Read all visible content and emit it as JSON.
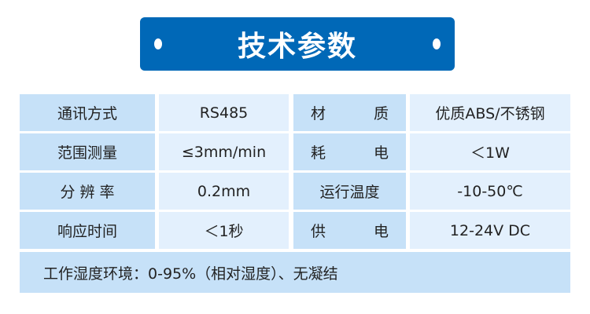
{
  "title": "技术参数",
  "colors": {
    "banner": "#0068b7",
    "label_cell": "#c6e1f8",
    "value_cell": "#e3f0fd"
  },
  "rows": [
    {
      "label1": "通讯方式",
      "value1": "RS485",
      "label2": [
        "材",
        "质"
      ],
      "value2": "优质ABS/不锈钢"
    },
    {
      "label1": "范围测量",
      "value1": "≤3mm/min",
      "label2": [
        "耗",
        "电"
      ],
      "value2": "＜1W"
    },
    {
      "label1": "分 辨 率",
      "value1": "0.2mm",
      "label2": [
        "运行温度"
      ],
      "value2": "-10-50℃"
    },
    {
      "label1": "响应时间",
      "value1": "＜1秒",
      "label2": [
        "供",
        "电"
      ],
      "value2": "12-24V DC"
    }
  ],
  "footer": "工作湿度环境：0-95%（相对湿度）、无凝结"
}
